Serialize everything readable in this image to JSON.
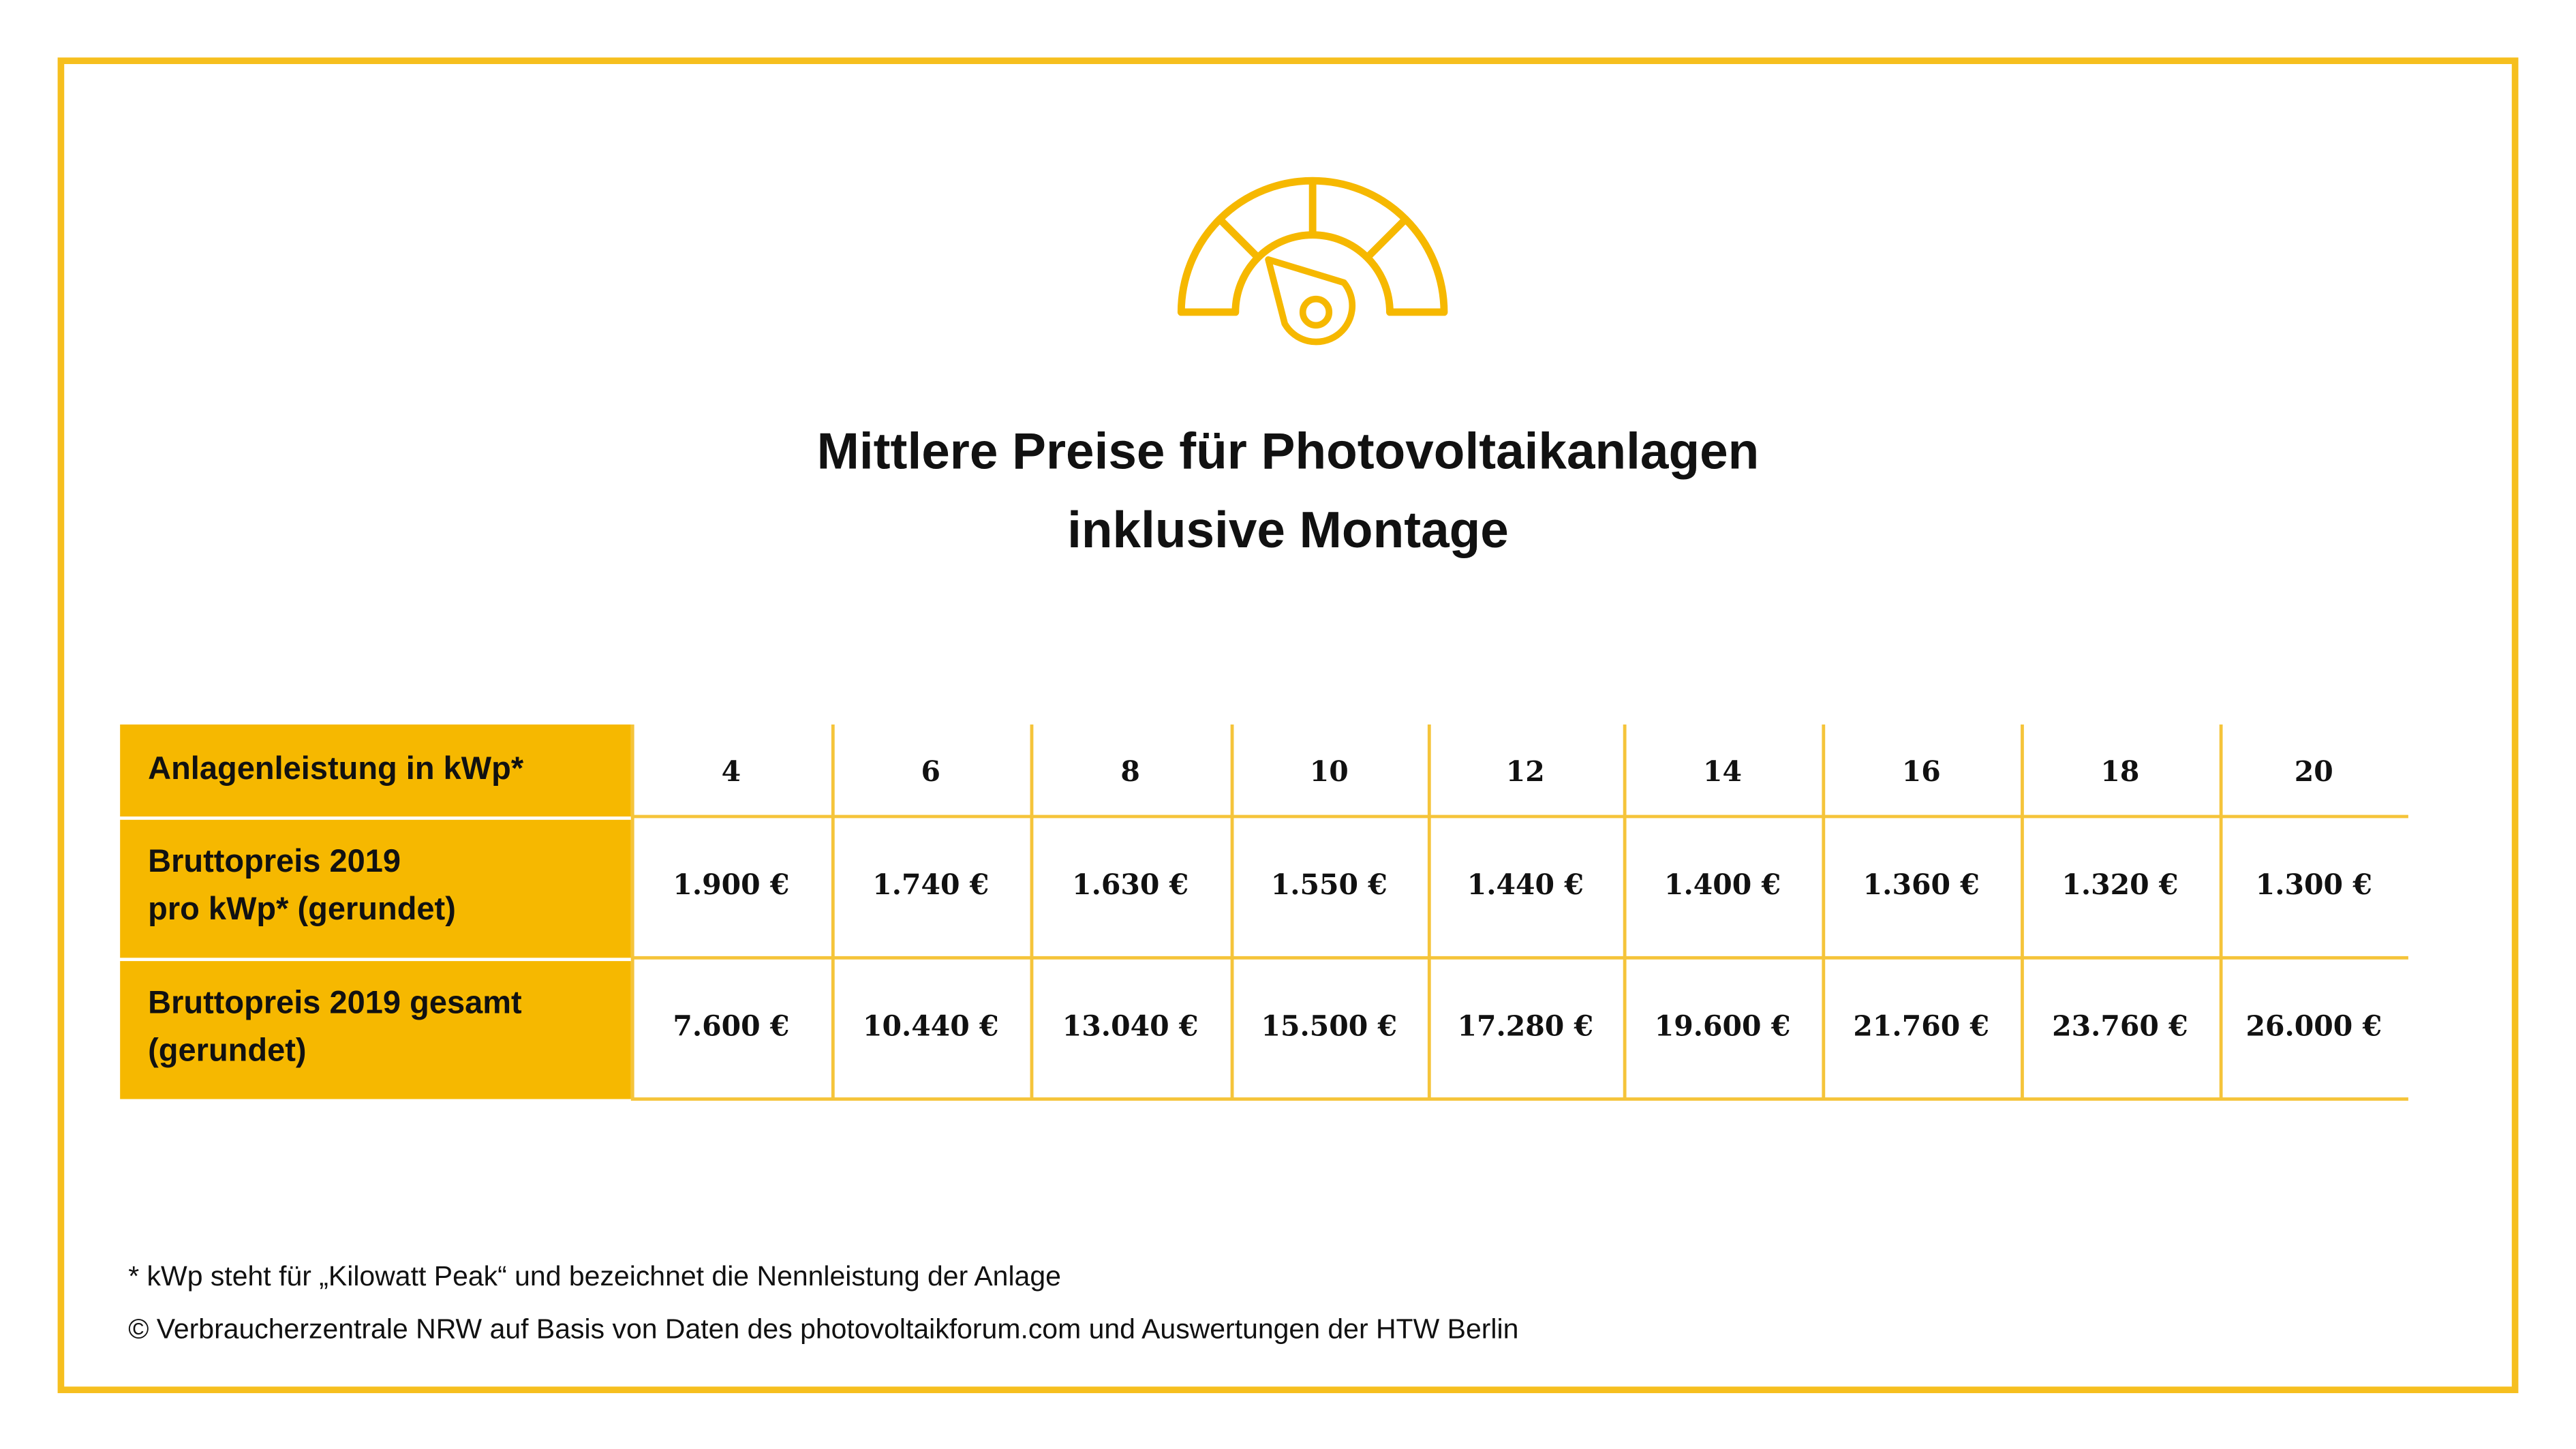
{
  "title": {
    "lines": [
      "Mittlere Preise für Photovoltaikanlagen",
      "inklusive Montage"
    ]
  },
  "table": {
    "header": {
      "label": [
        "Anlagenleistung in kWp*"
      ],
      "cells": [
        "4",
        "6",
        "8",
        "10",
        "12",
        "14",
        "16",
        "18",
        "20"
      ]
    },
    "rows": [
      {
        "label": [
          "Bruttopreis 2019",
          "pro kWp* (gerundet)"
        ],
        "cells": [
          "1.900 €",
          "1.740 €",
          "1.630 €",
          "1.550 €",
          "1.440 €",
          "1.400 €",
          "1.360 €",
          "1.320 €",
          "1.300 €"
        ]
      },
      {
        "label": [
          "Bruttopreis 2019 gesamt",
          "(gerundet)"
        ],
        "cells": [
          "7.600 €",
          "10.440 €",
          "13.040 €",
          "15.500 €",
          "17.280 €",
          "19.600 €",
          "21.760 €",
          "23.760 €",
          "26.000 €"
        ]
      }
    ]
  },
  "footnotes": [
    "* kWp steht für „Kilowatt Peak“ und bezeichnet die Nennleistung der Anlage",
    "© Verbraucherzentrale NRW auf Basis von Daten des photovoltaikforum.com und Auswertungen der HTW Berlin"
  ]
}
